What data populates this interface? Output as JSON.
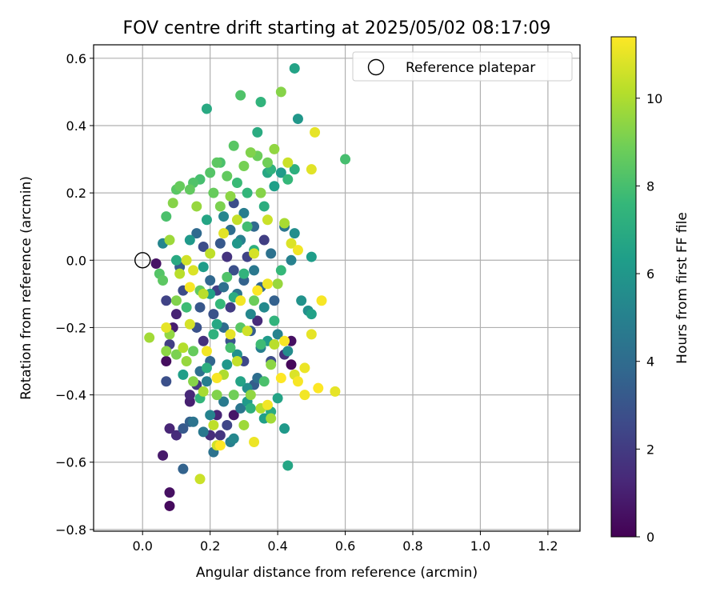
{
  "chart_data": {
    "type": "scatter",
    "title": "FOV centre drift starting at 2025/05/02 08:17:09",
    "xlabel": "Angular distance from reference (arcmin)",
    "ylabel": "Rotation from reference (arcmin)",
    "xlim": [
      -0.145,
      1.295
    ],
    "ylim": [
      -0.805,
      0.64
    ],
    "xticks": [
      "0.0",
      "0.2",
      "0.4",
      "0.6",
      "0.8",
      "1.0",
      "1.2"
    ],
    "xtick_values": [
      0.0,
      0.2,
      0.4,
      0.6,
      0.8,
      1.0,
      1.2
    ],
    "yticks": [
      "−0.8",
      "−0.6",
      "−0.4",
      "−0.2",
      "0.0",
      "0.2",
      "0.4",
      "0.6"
    ],
    "ytick_values": [
      -0.8,
      -0.6,
      -0.4,
      -0.2,
      0.0,
      0.2,
      0.4,
      0.6
    ],
    "grid": true,
    "legend": {
      "position": "top-right",
      "label": "Reference platepar"
    },
    "reference_point": {
      "x": 0.0,
      "y": 0.0
    },
    "colorbar": {
      "label": "Hours from first FF file",
      "colormap": "viridis",
      "range": [
        0,
        11.4
      ],
      "ticks": [
        "0",
        "2",
        "4",
        "6",
        "8",
        "10"
      ],
      "tick_values": [
        0,
        2,
        4,
        6,
        8,
        10
      ],
      "colors": [
        "#440154",
        "#482878",
        "#3e4989",
        "#31688e",
        "#26828e",
        "#1f9e89",
        "#35b779",
        "#6ece58",
        "#b5de2b",
        "#fde725"
      ]
    },
    "points": [
      {
        "x": 0.08,
        "y": -0.73,
        "h": 0.3
      },
      {
        "x": 0.08,
        "y": -0.69,
        "h": 0.5
      },
      {
        "x": 0.06,
        "y": -0.58,
        "h": 0.8
      },
      {
        "x": 0.08,
        "y": -0.5,
        "h": 1.2
      },
      {
        "x": 0.1,
        "y": -0.52,
        "h": 1.4
      },
      {
        "x": 0.12,
        "y": -0.62,
        "h": 3.6
      },
      {
        "x": 0.12,
        "y": -0.5,
        "h": 3.2
      },
      {
        "x": 0.14,
        "y": -0.48,
        "h": 3.5
      },
      {
        "x": 0.15,
        "y": -0.48,
        "h": 4.4
      },
      {
        "x": 0.14,
        "y": -0.42,
        "h": 1.0
      },
      {
        "x": 0.14,
        "y": -0.4,
        "h": 1.3
      },
      {
        "x": 0.07,
        "y": -0.36,
        "h": 2.8
      },
      {
        "x": 0.07,
        "y": -0.3,
        "h": 0.4
      },
      {
        "x": 0.08,
        "y": -0.25,
        "h": 2.1
      },
      {
        "x": 0.09,
        "y": -0.2,
        "h": 0.9
      },
      {
        "x": 0.07,
        "y": -0.12,
        "h": 2.3
      },
      {
        "x": 0.1,
        "y": -0.16,
        "h": 1.1
      },
      {
        "x": 0.12,
        "y": -0.09,
        "h": 2.6
      },
      {
        "x": 0.11,
        "y": -0.02,
        "h": 3.3
      },
      {
        "x": 0.04,
        "y": -0.01,
        "h": 0.6
      },
      {
        "x": 0.06,
        "y": 0.05,
        "h": 5.2
      },
      {
        "x": 0.16,
        "y": 0.08,
        "h": 3.9
      },
      {
        "x": 0.18,
        "y": 0.04,
        "h": 2.7
      },
      {
        "x": 0.2,
        "y": -0.06,
        "h": 3.8
      },
      {
        "x": 0.22,
        "y": -0.09,
        "h": 2.2
      },
      {
        "x": 0.17,
        "y": -0.14,
        "h": 3.1
      },
      {
        "x": 0.16,
        "y": -0.2,
        "h": 2.9
      },
      {
        "x": 0.18,
        "y": -0.24,
        "h": 1.6
      },
      {
        "x": 0.2,
        "y": -0.3,
        "h": 3.7
      },
      {
        "x": 0.17,
        "y": -0.33,
        "h": 4.2
      },
      {
        "x": 0.16,
        "y": -0.37,
        "h": 1.9
      },
      {
        "x": 0.19,
        "y": -0.36,
        "h": 4.8
      },
      {
        "x": 0.2,
        "y": -0.46,
        "h": 5.1
      },
      {
        "x": 0.18,
        "y": -0.51,
        "h": 4.6
      },
      {
        "x": 0.2,
        "y": -0.52,
        "h": 1.5
      },
      {
        "x": 0.21,
        "y": -0.57,
        "h": 4.3
      },
      {
        "x": 0.22,
        "y": -0.46,
        "h": 1.2
      },
      {
        "x": 0.23,
        "y": -0.52,
        "h": 1.8
      },
      {
        "x": 0.24,
        "y": -0.42,
        "h": 4.7
      },
      {
        "x": 0.25,
        "y": -0.49,
        "h": 2.4
      },
      {
        "x": 0.26,
        "y": -0.54,
        "h": 4.9
      },
      {
        "x": 0.27,
        "y": -0.53,
        "h": 5.3
      },
      {
        "x": 0.27,
        "y": -0.46,
        "h": 0.7
      },
      {
        "x": 0.29,
        "y": -0.44,
        "h": 4.5
      },
      {
        "x": 0.31,
        "y": -0.38,
        "h": 5.6
      },
      {
        "x": 0.33,
        "y": -0.37,
        "h": 3.4
      },
      {
        "x": 0.34,
        "y": -0.35,
        "h": 4.1
      },
      {
        "x": 0.3,
        "y": -0.3,
        "h": 2.5
      },
      {
        "x": 0.28,
        "y": -0.28,
        "h": 5.7
      },
      {
        "x": 0.26,
        "y": -0.24,
        "h": 3.0
      },
      {
        "x": 0.24,
        "y": -0.2,
        "h": 4.0
      },
      {
        "x": 0.26,
        "y": -0.14,
        "h": 2.0
      },
      {
        "x": 0.28,
        "y": -0.1,
        "h": 4.4
      },
      {
        "x": 0.3,
        "y": -0.06,
        "h": 3.6
      },
      {
        "x": 0.27,
        "y": -0.03,
        "h": 2.8
      },
      {
        "x": 0.25,
        "y": 0.01,
        "h": 1.7
      },
      {
        "x": 0.23,
        "y": 0.05,
        "h": 3.2
      },
      {
        "x": 0.26,
        "y": 0.09,
        "h": 4.1
      },
      {
        "x": 0.29,
        "y": 0.06,
        "h": 5.0
      },
      {
        "x": 0.31,
        "y": 0.01,
        "h": 2.3
      },
      {
        "x": 0.33,
        "y": -0.03,
        "h": 4.6
      },
      {
        "x": 0.35,
        "y": -0.08,
        "h": 3.8
      },
      {
        "x": 0.36,
        "y": -0.14,
        "h": 5.4
      },
      {
        "x": 0.34,
        "y": -0.18,
        "h": 1.4
      },
      {
        "x": 0.32,
        "y": -0.21,
        "h": 3.3
      },
      {
        "x": 0.35,
        "y": -0.26,
        "h": 4.9
      },
      {
        "x": 0.38,
        "y": -0.3,
        "h": 2.6
      },
      {
        "x": 0.4,
        "y": -0.22,
        "h": 5.1
      },
      {
        "x": 0.42,
        "y": -0.28,
        "h": 1.6
      },
      {
        "x": 0.44,
        "y": -0.24,
        "h": 0.5
      },
      {
        "x": 0.43,
        "y": -0.27,
        "h": 5.5
      },
      {
        "x": 0.44,
        "y": -0.31,
        "h": 0.2
      },
      {
        "x": 0.38,
        "y": 0.02,
        "h": 4.3
      },
      {
        "x": 0.36,
        "y": 0.06,
        "h": 2.1
      },
      {
        "x": 0.33,
        "y": 0.1,
        "h": 3.9
      },
      {
        "x": 0.3,
        "y": 0.14,
        "h": 4.8
      },
      {
        "x": 0.27,
        "y": 0.17,
        "h": 2.7
      },
      {
        "x": 0.24,
        "y": 0.13,
        "h": 5.2
      },
      {
        "x": 0.42,
        "y": 0.1,
        "h": 4.5
      },
      {
        "x": 0.45,
        "y": 0.08,
        "h": 5.6
      },
      {
        "x": 0.44,
        "y": 0.0,
        "h": 5.0
      },
      {
        "x": 0.47,
        "y": -0.12,
        "h": 5.8
      },
      {
        "x": 0.49,
        "y": -0.15,
        "h": 5.7
      },
      {
        "x": 0.46,
        "y": 0.42,
        "h": 6.0
      },
      {
        "x": 0.45,
        "y": 0.57,
        "h": 6.6
      },
      {
        "x": 0.41,
        "y": 0.26,
        "h": 6.2
      },
      {
        "x": 0.39,
        "y": 0.22,
        "h": 6.4
      },
      {
        "x": 0.37,
        "y": 0.26,
        "h": 6.8
      },
      {
        "x": 0.19,
        "y": 0.45,
        "h": 6.9
      },
      {
        "x": 0.5,
        "y": 0.01,
        "h": 6.3
      },
      {
        "x": 0.5,
        "y": -0.16,
        "h": 6.5
      },
      {
        "x": 0.42,
        "y": -0.5,
        "h": 6.1
      },
      {
        "x": 0.43,
        "y": -0.61,
        "h": 6.7
      },
      {
        "x": 0.38,
        "y": -0.45,
        "h": 6.9
      },
      {
        "x": 0.36,
        "y": -0.47,
        "h": 6.4
      },
      {
        "x": 0.31,
        "y": -0.42,
        "h": 6.2
      },
      {
        "x": 0.29,
        "y": -0.36,
        "h": 6.6
      },
      {
        "x": 0.25,
        "y": -0.31,
        "h": 6.0
      },
      {
        "x": 0.22,
        "y": -0.19,
        "h": 6.8
      },
      {
        "x": 0.2,
        "y": -0.1,
        "h": 6.5
      },
      {
        "x": 0.18,
        "y": -0.02,
        "h": 6.3
      },
      {
        "x": 0.19,
        "y": 0.12,
        "h": 6.7
      },
      {
        "x": 0.14,
        "y": 0.06,
        "h": 6.1
      },
      {
        "x": 0.1,
        "y": 0.0,
        "h": 6.9
      },
      {
        "x": 0.12,
        "y": -0.34,
        "h": 6.4
      },
      {
        "x": 0.37,
        "y": -0.24,
        "h": 6.2
      },
      {
        "x": 0.4,
        "y": -0.41,
        "h": 6.6
      },
      {
        "x": 0.34,
        "y": 0.38,
        "h": 7.0
      },
      {
        "x": 0.35,
        "y": 0.47,
        "h": 7.4
      },
      {
        "x": 0.45,
        "y": 0.27,
        "h": 7.2
      },
      {
        "x": 0.43,
        "y": 0.24,
        "h": 7.6
      },
      {
        "x": 0.38,
        "y": 0.27,
        "h": 7.3
      },
      {
        "x": 0.36,
        "y": 0.16,
        "h": 7.1
      },
      {
        "x": 0.31,
        "y": 0.2,
        "h": 7.5
      },
      {
        "x": 0.28,
        "y": 0.23,
        "h": 7.7
      },
      {
        "x": 0.33,
        "y": 0.03,
        "h": 7.2
      },
      {
        "x": 0.3,
        "y": -0.04,
        "h": 7.4
      },
      {
        "x": 0.27,
        "y": -0.11,
        "h": 7.0
      },
      {
        "x": 0.23,
        "y": -0.13,
        "h": 7.6
      },
      {
        "x": 0.21,
        "y": -0.22,
        "h": 7.3
      },
      {
        "x": 0.19,
        "y": -0.32,
        "h": 7.1
      },
      {
        "x": 0.17,
        "y": -0.41,
        "h": 7.5
      },
      {
        "x": 0.32,
        "y": -0.44,
        "h": 7.2
      },
      {
        "x": 0.35,
        "y": -0.25,
        "h": 7.8
      },
      {
        "x": 0.39,
        "y": -0.18,
        "h": 7.4
      },
      {
        "x": 0.41,
        "y": -0.03,
        "h": 7.6
      },
      {
        "x": 0.6,
        "y": 0.3,
        "h": 8.0
      },
      {
        "x": 0.29,
        "y": 0.49,
        "h": 8.2
      },
      {
        "x": 0.27,
        "y": 0.34,
        "h": 8.4
      },
      {
        "x": 0.23,
        "y": 0.29,
        "h": 8.1
      },
      {
        "x": 0.22,
        "y": 0.29,
        "h": 8.5
      },
      {
        "x": 0.2,
        "y": 0.26,
        "h": 8.3
      },
      {
        "x": 0.17,
        "y": 0.24,
        "h": 8.0
      },
      {
        "x": 0.14,
        "y": 0.21,
        "h": 8.6
      },
      {
        "x": 0.15,
        "y": 0.23,
        "h": 8.2
      },
      {
        "x": 0.1,
        "y": 0.21,
        "h": 8.4
      },
      {
        "x": 0.11,
        "y": 0.22,
        "h": 8.7
      },
      {
        "x": 0.07,
        "y": 0.13,
        "h": 8.1
      },
      {
        "x": 0.05,
        "y": -0.04,
        "h": 8.3
      },
      {
        "x": 0.06,
        "y": -0.06,
        "h": 8.5
      },
      {
        "x": 0.17,
        "y": -0.09,
        "h": 8.6
      },
      {
        "x": 0.25,
        "y": -0.05,
        "h": 8.2
      },
      {
        "x": 0.33,
        "y": -0.12,
        "h": 8.8
      },
      {
        "x": 0.29,
        "y": -0.2,
        "h": 8.4
      },
      {
        "x": 0.26,
        "y": -0.26,
        "h": 8.0
      },
      {
        "x": 0.37,
        "y": 0.29,
        "h": 8.9
      },
      {
        "x": 0.41,
        "y": 0.5,
        "h": 9.3
      },
      {
        "x": 0.39,
        "y": 0.33,
        "h": 9.5
      },
      {
        "x": 0.32,
        "y": 0.32,
        "h": 9.2
      },
      {
        "x": 0.26,
        "y": 0.19,
        "h": 9.4
      },
      {
        "x": 0.23,
        "y": 0.16,
        "h": 9.1
      },
      {
        "x": 0.16,
        "y": 0.16,
        "h": 9.6
      },
      {
        "x": 0.09,
        "y": 0.17,
        "h": 9.3
      },
      {
        "x": 0.08,
        "y": 0.06,
        "h": 9.7
      },
      {
        "x": 0.1,
        "y": -0.12,
        "h": 9.2
      },
      {
        "x": 0.08,
        "y": -0.22,
        "h": 9.5
      },
      {
        "x": 0.02,
        "y": -0.23,
        "h": 9.8
      },
      {
        "x": 0.07,
        "y": -0.27,
        "h": 9.4
      },
      {
        "x": 0.1,
        "y": -0.28,
        "h": 9.1
      },
      {
        "x": 0.13,
        "y": -0.3,
        "h": 9.6
      },
      {
        "x": 0.15,
        "y": -0.36,
        "h": 9.3
      },
      {
        "x": 0.18,
        "y": -0.39,
        "h": 9.9
      },
      {
        "x": 0.22,
        "y": -0.4,
        "h": 9.2
      },
      {
        "x": 0.3,
        "y": -0.49,
        "h": 9.7
      },
      {
        "x": 0.32,
        "y": -0.4,
        "h": 9.5
      },
      {
        "x": 0.35,
        "y": -0.44,
        "h": 10.1
      },
      {
        "x": 0.38,
        "y": -0.47,
        "h": 9.8
      },
      {
        "x": 0.38,
        "y": -0.31,
        "h": 9.4
      },
      {
        "x": 0.4,
        "y": -0.07,
        "h": 9.6
      },
      {
        "x": 0.42,
        "y": 0.11,
        "h": 9.9
      },
      {
        "x": 0.35,
        "y": 0.2,
        "h": 9.3
      },
      {
        "x": 0.39,
        "y": -0.25,
        "h": 10.2
      },
      {
        "x": 0.28,
        "y": -0.3,
        "h": 10.4
      },
      {
        "x": 0.24,
        "y": -0.34,
        "h": 10.0
      },
      {
        "x": 0.21,
        "y": -0.49,
        "h": 10.3
      },
      {
        "x": 0.22,
        "y": -0.55,
        "h": 10.6
      },
      {
        "x": 0.17,
        "y": -0.65,
        "h": 10.5
      },
      {
        "x": 0.12,
        "y": -0.26,
        "h": 10.1
      },
      {
        "x": 0.14,
        "y": -0.19,
        "h": 10.7
      },
      {
        "x": 0.18,
        "y": -0.1,
        "h": 10.2
      },
      {
        "x": 0.15,
        "y": -0.03,
        "h": 10.8
      },
      {
        "x": 0.43,
        "y": 0.29,
        "h": 10.5
      },
      {
        "x": 0.5,
        "y": 0.27,
        "h": 10.9
      },
      {
        "x": 0.51,
        "y": 0.38,
        "h": 11.0
      },
      {
        "x": 0.46,
        "y": 0.03,
        "h": 11.2
      },
      {
        "x": 0.53,
        "y": -0.12,
        "h": 11.3
      },
      {
        "x": 0.5,
        "y": -0.22,
        "h": 11.0
      },
      {
        "x": 0.48,
        "y": -0.32,
        "h": 11.1
      },
      {
        "x": 0.46,
        "y": -0.36,
        "h": 11.3
      },
      {
        "x": 0.48,
        "y": -0.4,
        "h": 11.2
      },
      {
        "x": 0.52,
        "y": -0.38,
        "h": 11.4
      },
      {
        "x": 0.57,
        "y": -0.39,
        "h": 11.0
      },
      {
        "x": 0.42,
        "y": -0.24,
        "h": 11.3
      },
      {
        "x": 0.37,
        "y": -0.07,
        "h": 11.1
      },
      {
        "x": 0.34,
        "y": -0.09,
        "h": 11.4
      },
      {
        "x": 0.29,
        "y": -0.12,
        "h": 11.2
      },
      {
        "x": 0.26,
        "y": -0.22,
        "h": 11.0
      },
      {
        "x": 0.22,
        "y": -0.35,
        "h": 11.3
      },
      {
        "x": 0.33,
        "y": -0.54,
        "h": 11.1
      },
      {
        "x": 0.37,
        "y": -0.43,
        "h": 11.2
      },
      {
        "x": 0.41,
        "y": -0.35,
        "h": 11.4
      },
      {
        "x": 0.07,
        "y": -0.2,
        "h": 11.0
      },
      {
        "x": 0.14,
        "y": -0.08,
        "h": 11.3
      },
      {
        "x": 0.19,
        "y": -0.27,
        "h": 11.2
      },
      {
        "x": 0.23,
        "y": -0.55,
        "h": 11.4
      },
      {
        "x": 0.45,
        "y": -0.34,
        "h": 10.8
      },
      {
        "x": 0.31,
        "y": -0.21,
        "h": 10.6
      },
      {
        "x": 0.33,
        "y": 0.02,
        "h": 10.7
      },
      {
        "x": 0.28,
        "y": 0.12,
        "h": 10.4
      },
      {
        "x": 0.24,
        "y": 0.08,
        "h": 10.9
      },
      {
        "x": 0.2,
        "y": 0.02,
        "h": 10.3
      },
      {
        "x": 0.13,
        "y": 0.0,
        "h": 10.6
      },
      {
        "x": 0.11,
        "y": -0.04,
        "h": 10.2
      },
      {
        "x": 0.37,
        "y": 0.12,
        "h": 10.5
      },
      {
        "x": 0.44,
        "y": 0.05,
        "h": 10.8
      },
      {
        "x": 0.25,
        "y": 0.25,
        "h": 8.6
      },
      {
        "x": 0.34,
        "y": 0.31,
        "h": 8.8
      },
      {
        "x": 0.3,
        "y": 0.28,
        "h": 9.0
      },
      {
        "x": 0.21,
        "y": 0.2,
        "h": 8.7
      },
      {
        "x": 0.31,
        "y": 0.1,
        "h": 7.9
      },
      {
        "x": 0.36,
        "y": -0.36,
        "h": 8.1
      },
      {
        "x": 0.27,
        "y": -0.4,
        "h": 8.9
      },
      {
        "x": 0.15,
        "y": -0.27,
        "h": 8.7
      },
      {
        "x": 0.13,
        "y": -0.14,
        "h": 7.8
      },
      {
        "x": 0.28,
        "y": 0.05,
        "h": 6.0
      },
      {
        "x": 0.32,
        "y": -0.16,
        "h": 5.3
      },
      {
        "x": 0.24,
        "y": -0.08,
        "h": 4.2
      },
      {
        "x": 0.21,
        "y": -0.16,
        "h": 2.9
      },
      {
        "x": 0.39,
        "y": -0.12,
        "h": 3.5
      }
    ]
  }
}
